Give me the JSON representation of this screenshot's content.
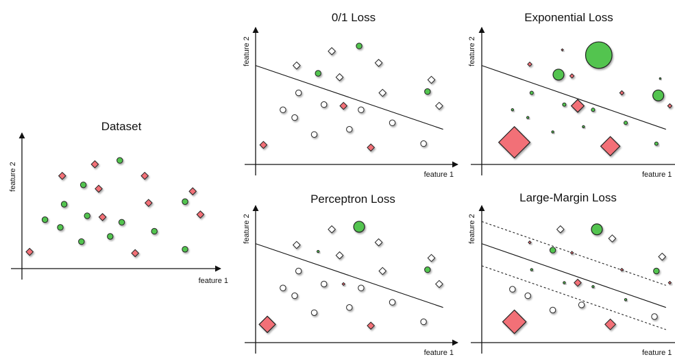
{
  "panels": [
    {
      "id": "dataset",
      "title": "Dataset",
      "xlabel": "feature 1",
      "ylabel": "feature 2",
      "boundary": null,
      "margins": null,
      "points": [
        {
          "x": 0.04,
          "y": 0.13,
          "shape": "diamond",
          "color": "red",
          "size": 1
        },
        {
          "x": 0.12,
          "y": 0.38,
          "shape": "circle",
          "color": "green",
          "size": 1
        },
        {
          "x": 0.2,
          "y": 0.32,
          "shape": "circle",
          "color": "green",
          "size": 1
        },
        {
          "x": 0.21,
          "y": 0.72,
          "shape": "diamond",
          "color": "red",
          "size": 1
        },
        {
          "x": 0.22,
          "y": 0.5,
          "shape": "circle",
          "color": "green",
          "size": 1
        },
        {
          "x": 0.31,
          "y": 0.21,
          "shape": "circle",
          "color": "green",
          "size": 1
        },
        {
          "x": 0.32,
          "y": 0.65,
          "shape": "circle",
          "color": "green",
          "size": 1
        },
        {
          "x": 0.34,
          "y": 0.41,
          "shape": "circle",
          "color": "green",
          "size": 1
        },
        {
          "x": 0.38,
          "y": 0.81,
          "shape": "diamond",
          "color": "red",
          "size": 1
        },
        {
          "x": 0.4,
          "y": 0.62,
          "shape": "diamond",
          "color": "red",
          "size": 1
        },
        {
          "x": 0.42,
          "y": 0.4,
          "shape": "diamond",
          "color": "red",
          "size": 1
        },
        {
          "x": 0.46,
          "y": 0.25,
          "shape": "circle",
          "color": "green",
          "size": 1
        },
        {
          "x": 0.51,
          "y": 0.84,
          "shape": "circle",
          "color": "green",
          "size": 1
        },
        {
          "x": 0.52,
          "y": 0.36,
          "shape": "circle",
          "color": "green",
          "size": 1
        },
        {
          "x": 0.59,
          "y": 0.12,
          "shape": "diamond",
          "color": "red",
          "size": 1
        },
        {
          "x": 0.64,
          "y": 0.72,
          "shape": "diamond",
          "color": "red",
          "size": 1
        },
        {
          "x": 0.66,
          "y": 0.51,
          "shape": "diamond",
          "color": "red",
          "size": 1
        },
        {
          "x": 0.69,
          "y": 0.29,
          "shape": "circle",
          "color": "green",
          "size": 1
        },
        {
          "x": 0.85,
          "y": 0.15,
          "shape": "circle",
          "color": "green",
          "size": 1
        },
        {
          "x": 0.85,
          "y": 0.52,
          "shape": "circle",
          "color": "green",
          "size": 1
        },
        {
          "x": 0.89,
          "y": 0.6,
          "shape": "diamond",
          "color": "red",
          "size": 1
        },
        {
          "x": 0.93,
          "y": 0.42,
          "shape": "diamond",
          "color": "red",
          "size": 1
        }
      ]
    },
    {
      "id": "zero-one",
      "title": "0/1 Loss",
      "xlabel": "feature 1",
      "ylabel": "feature 2",
      "boundary": [
        [
          0.0,
          0.76
        ],
        [
          0.96,
          0.27
        ]
      ],
      "margins": null,
      "points": [
        {
          "x": 0.04,
          "y": 0.15,
          "shape": "diamond",
          "color": "red",
          "size": 1
        },
        {
          "x": 0.14,
          "y": 0.42,
          "shape": "circle",
          "color": "white",
          "size": 1
        },
        {
          "x": 0.2,
          "y": 0.36,
          "shape": "circle",
          "color": "white",
          "size": 1
        },
        {
          "x": 0.21,
          "y": 0.76,
          "shape": "diamond",
          "color": "white",
          "size": 1
        },
        {
          "x": 0.22,
          "y": 0.55,
          "shape": "circle",
          "color": "white",
          "size": 1
        },
        {
          "x": 0.3,
          "y": 0.23,
          "shape": "circle",
          "color": "white",
          "size": 1
        },
        {
          "x": 0.32,
          "y": 0.7,
          "shape": "circle",
          "color": "green",
          "size": 1
        },
        {
          "x": 0.35,
          "y": 0.46,
          "shape": "circle",
          "color": "white",
          "size": 1
        },
        {
          "x": 0.39,
          "y": 0.87,
          "shape": "diamond",
          "color": "white",
          "size": 1
        },
        {
          "x": 0.43,
          "y": 0.67,
          "shape": "diamond",
          "color": "white",
          "size": 1
        },
        {
          "x": 0.45,
          "y": 0.45,
          "shape": "diamond",
          "color": "red",
          "size": 1
        },
        {
          "x": 0.48,
          "y": 0.27,
          "shape": "circle",
          "color": "white",
          "size": 1
        },
        {
          "x": 0.53,
          "y": 0.91,
          "shape": "circle",
          "color": "green",
          "size": 1
        },
        {
          "x": 0.54,
          "y": 0.42,
          "shape": "circle",
          "color": "white",
          "size": 1
        },
        {
          "x": 0.59,
          "y": 0.13,
          "shape": "diamond",
          "color": "red",
          "size": 1
        },
        {
          "x": 0.63,
          "y": 0.78,
          "shape": "diamond",
          "color": "white",
          "size": 1
        },
        {
          "x": 0.65,
          "y": 0.55,
          "shape": "diamond",
          "color": "white",
          "size": 1
        },
        {
          "x": 0.7,
          "y": 0.32,
          "shape": "circle",
          "color": "white",
          "size": 1
        },
        {
          "x": 0.86,
          "y": 0.16,
          "shape": "circle",
          "color": "white",
          "size": 1
        },
        {
          "x": 0.88,
          "y": 0.56,
          "shape": "circle",
          "color": "green",
          "size": 1
        },
        {
          "x": 0.9,
          "y": 0.65,
          "shape": "diamond",
          "color": "white",
          "size": 1
        },
        {
          "x": 0.94,
          "y": 0.45,
          "shape": "diamond",
          "color": "white",
          "size": 1
        }
      ]
    },
    {
      "id": "exponential",
      "title": "Exponential Loss",
      "xlabel": "feature 1",
      "ylabel": "feature 2",
      "boundary": [
        [
          0.0,
          0.76
        ],
        [
          0.96,
          0.27
        ]
      ],
      "margins": null,
      "points": [
        {
          "x": 0.17,
          "y": 0.17,
          "shape": "diamond",
          "color": "red",
          "size": 4.4
        },
        {
          "x": 0.16,
          "y": 0.42,
          "shape": "circle",
          "color": "green",
          "size": 0.4
        },
        {
          "x": 0.24,
          "y": 0.36,
          "shape": "circle",
          "color": "green",
          "size": 0.4
        },
        {
          "x": 0.25,
          "y": 0.77,
          "shape": "diamond",
          "color": "red",
          "size": 0.6
        },
        {
          "x": 0.26,
          "y": 0.55,
          "shape": "circle",
          "color": "green",
          "size": 0.6
        },
        {
          "x": 0.37,
          "y": 0.25,
          "shape": "circle",
          "color": "green",
          "size": 0.4
        },
        {
          "x": 0.4,
          "y": 0.69,
          "shape": "circle",
          "color": "green",
          "size": 1.9
        },
        {
          "x": 0.43,
          "y": 0.46,
          "shape": "circle",
          "color": "green",
          "size": 0.6
        },
        {
          "x": 0.42,
          "y": 0.88,
          "shape": "diamond",
          "color": "red",
          "size": 0.3
        },
        {
          "x": 0.47,
          "y": 0.68,
          "shape": "diamond",
          "color": "red",
          "size": 0.6
        },
        {
          "x": 0.5,
          "y": 0.45,
          "shape": "diamond",
          "color": "red",
          "size": 1.8
        },
        {
          "x": 0.53,
          "y": 0.29,
          "shape": "circle",
          "color": "green",
          "size": 0.4
        },
        {
          "x": 0.61,
          "y": 0.84,
          "shape": "circle",
          "color": "green",
          "size": 4.6
        },
        {
          "x": 0.58,
          "y": 0.42,
          "shape": "circle",
          "color": "green",
          "size": 0.6
        },
        {
          "x": 0.67,
          "y": 0.14,
          "shape": "diamond",
          "color": "red",
          "size": 2.7
        },
        {
          "x": 0.73,
          "y": 0.55,
          "shape": "diamond",
          "color": "red",
          "size": 0.6
        },
        {
          "x": 0.75,
          "y": 0.32,
          "shape": "circle",
          "color": "green",
          "size": 0.6
        },
        {
          "x": 0.91,
          "y": 0.16,
          "shape": "circle",
          "color": "green",
          "size": 0.6
        },
        {
          "x": 0.92,
          "y": 0.53,
          "shape": "circle",
          "color": "green",
          "size": 1.9
        },
        {
          "x": 0.93,
          "y": 0.66,
          "shape": "circle",
          "color": "green",
          "size": 0.3
        },
        {
          "x": 0.98,
          "y": 0.45,
          "shape": "diamond",
          "color": "red",
          "size": 0.6
        }
      ]
    },
    {
      "id": "perceptron",
      "title": "Perceptron Loss",
      "xlabel": "feature 1",
      "ylabel": "feature 2",
      "boundary": [
        [
          0.0,
          0.76
        ],
        [
          0.96,
          0.27
        ]
      ],
      "margins": null,
      "points": [
        {
          "x": 0.06,
          "y": 0.14,
          "shape": "diamond",
          "color": "red",
          "size": 2.3
        },
        {
          "x": 0.14,
          "y": 0.42,
          "shape": "circle",
          "color": "white",
          "size": 1
        },
        {
          "x": 0.2,
          "y": 0.36,
          "shape": "circle",
          "color": "white",
          "size": 1
        },
        {
          "x": 0.21,
          "y": 0.75,
          "shape": "diamond",
          "color": "white",
          "size": 1
        },
        {
          "x": 0.22,
          "y": 0.55,
          "shape": "circle",
          "color": "white",
          "size": 1
        },
        {
          "x": 0.3,
          "y": 0.23,
          "shape": "circle",
          "color": "white",
          "size": 1
        },
        {
          "x": 0.32,
          "y": 0.7,
          "shape": "circle",
          "color": "green",
          "size": 0.4
        },
        {
          "x": 0.35,
          "y": 0.45,
          "shape": "circle",
          "color": "white",
          "size": 1
        },
        {
          "x": 0.39,
          "y": 0.87,
          "shape": "diamond",
          "color": "white",
          "size": 1
        },
        {
          "x": 0.43,
          "y": 0.67,
          "shape": "diamond",
          "color": "white",
          "size": 1
        },
        {
          "x": 0.45,
          "y": 0.45,
          "shape": "diamond",
          "color": "red",
          "size": 0.4
        },
        {
          "x": 0.48,
          "y": 0.27,
          "shape": "circle",
          "color": "white",
          "size": 1
        },
        {
          "x": 0.53,
          "y": 0.89,
          "shape": "circle",
          "color": "green",
          "size": 1.9
        },
        {
          "x": 0.54,
          "y": 0.42,
          "shape": "circle",
          "color": "white",
          "size": 1
        },
        {
          "x": 0.59,
          "y": 0.13,
          "shape": "diamond",
          "color": "red",
          "size": 1
        },
        {
          "x": 0.63,
          "y": 0.77,
          "shape": "diamond",
          "color": "white",
          "size": 1
        },
        {
          "x": 0.65,
          "y": 0.55,
          "shape": "diamond",
          "color": "white",
          "size": 1
        },
        {
          "x": 0.7,
          "y": 0.31,
          "shape": "circle",
          "color": "white",
          "size": 1
        },
        {
          "x": 0.86,
          "y": 0.16,
          "shape": "circle",
          "color": "white",
          "size": 1
        },
        {
          "x": 0.88,
          "y": 0.56,
          "shape": "circle",
          "color": "green",
          "size": 1
        },
        {
          "x": 0.9,
          "y": 0.65,
          "shape": "diamond",
          "color": "white",
          "size": 1
        },
        {
          "x": 0.94,
          "y": 0.45,
          "shape": "diamond",
          "color": "white",
          "size": 1
        }
      ]
    },
    {
      "id": "large-margin",
      "title": "Large-Margin Loss",
      "xlabel": "feature 1",
      "ylabel": "feature 2",
      "boundary": [
        [
          0.0,
          0.76
        ],
        [
          0.96,
          0.27
        ]
      ],
      "margins": [
        [
          [
            0.0,
            0.93
          ],
          [
            0.96,
            0.44
          ]
        ],
        [
          [
            0.0,
            0.59
          ],
          [
            0.96,
            0.1
          ]
        ]
      ],
      "points": [
        {
          "x": 0.17,
          "y": 0.16,
          "shape": "diamond",
          "color": "red",
          "size": 3.3
        },
        {
          "x": 0.16,
          "y": 0.41,
          "shape": "circle",
          "color": "white",
          "size": 1
        },
        {
          "x": 0.24,
          "y": 0.36,
          "shape": "circle",
          "color": "white",
          "size": 1
        },
        {
          "x": 0.25,
          "y": 0.77,
          "shape": "diamond",
          "color": "red",
          "size": 0.4
        },
        {
          "x": 0.26,
          "y": 0.56,
          "shape": "circle",
          "color": "green",
          "size": 0.4
        },
        {
          "x": 0.37,
          "y": 0.25,
          "shape": "circle",
          "color": "white",
          "size": 1
        },
        {
          "x": 0.37,
          "y": 0.71,
          "shape": "circle",
          "color": "green",
          "size": 1
        },
        {
          "x": 0.43,
          "y": 0.46,
          "shape": "circle",
          "color": "green",
          "size": 0.4
        },
        {
          "x": 0.41,
          "y": 0.87,
          "shape": "diamond",
          "color": "white",
          "size": 1
        },
        {
          "x": 0.47,
          "y": 0.69,
          "shape": "diamond",
          "color": "red",
          "size": 0.4
        },
        {
          "x": 0.5,
          "y": 0.46,
          "shape": "diamond",
          "color": "red",
          "size": 1
        },
        {
          "x": 0.52,
          "y": 0.29,
          "shape": "circle",
          "color": "white",
          "size": 1
        },
        {
          "x": 0.6,
          "y": 0.87,
          "shape": "circle",
          "color": "green",
          "size": 1.9
        },
        {
          "x": 0.58,
          "y": 0.43,
          "shape": "circle",
          "color": "green",
          "size": 0.4
        },
        {
          "x": 0.67,
          "y": 0.14,
          "shape": "diamond",
          "color": "red",
          "size": 1.5
        },
        {
          "x": 0.68,
          "y": 0.8,
          "shape": "diamond",
          "color": "white",
          "size": 1
        },
        {
          "x": 0.73,
          "y": 0.56,
          "shape": "diamond",
          "color": "red",
          "size": 0.4
        },
        {
          "x": 0.75,
          "y": 0.33,
          "shape": "circle",
          "color": "green",
          "size": 0.4
        },
        {
          "x": 0.9,
          "y": 0.2,
          "shape": "circle",
          "color": "white",
          "size": 1
        },
        {
          "x": 0.91,
          "y": 0.55,
          "shape": "circle",
          "color": "green",
          "size": 1
        },
        {
          "x": 0.94,
          "y": 0.66,
          "shape": "diamond",
          "color": "white",
          "size": 1
        },
        {
          "x": 0.98,
          "y": 0.46,
          "shape": "diamond",
          "color": "red",
          "size": 0.4
        }
      ]
    }
  ],
  "colors": {
    "red": "#f26f77",
    "green": "#52c44f",
    "white": "#ffffff",
    "stroke": "#222222",
    "axis": "#111111"
  }
}
